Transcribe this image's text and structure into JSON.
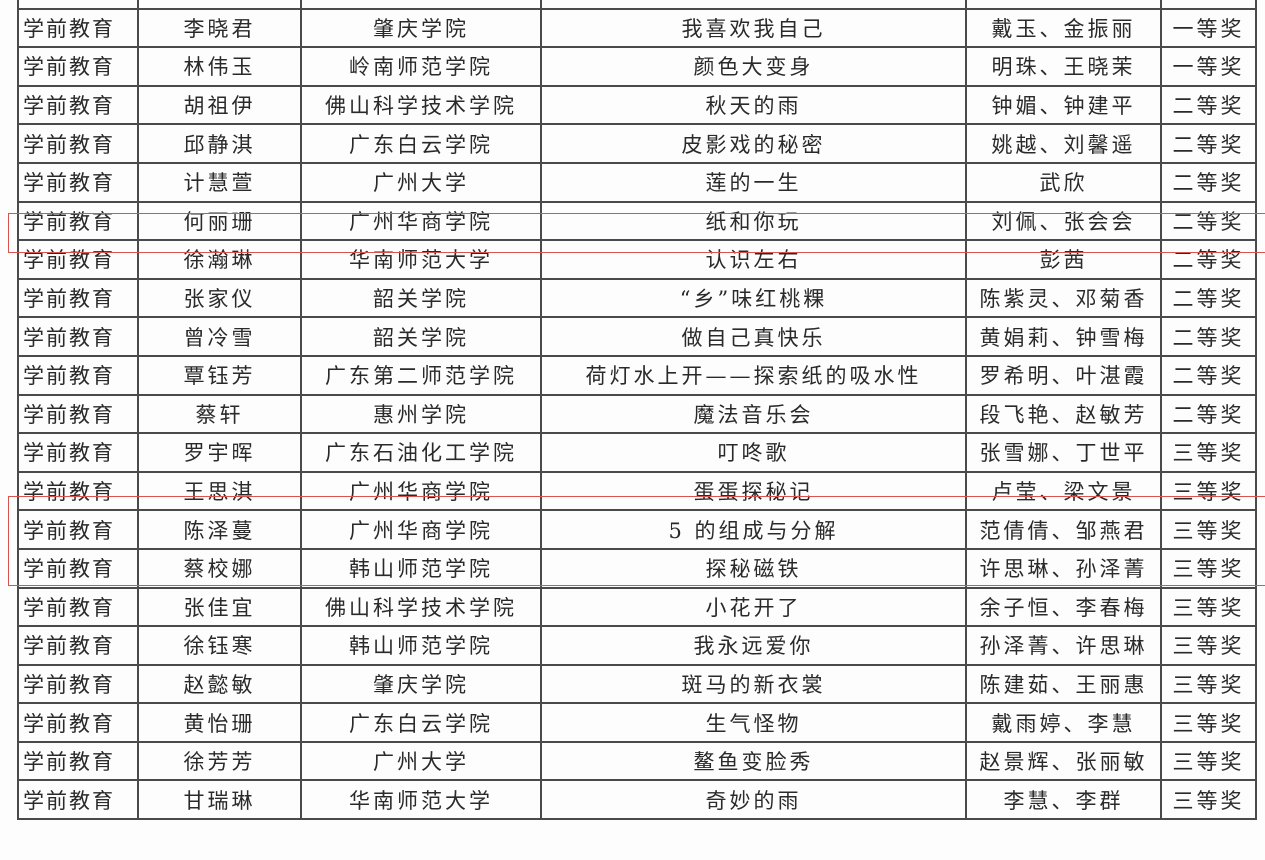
{
  "table": {
    "rows": [
      [
        "学前教育",
        "李晓君",
        "肇庆学院",
        "我喜欢我自己",
        "戴玉、金振丽",
        "一等奖"
      ],
      [
        "学前教育",
        "林伟玉",
        "岭南师范学院",
        "颜色大变身",
        "明珠、王晓茉",
        "一等奖"
      ],
      [
        "学前教育",
        "胡祖伊",
        "佛山科学技术学院",
        "秋天的雨",
        "钟媚、钟建平",
        "二等奖"
      ],
      [
        "学前教育",
        "邱静淇",
        "广东白云学院",
        "皮影戏的秘密",
        "姚越、刘馨遥",
        "二等奖"
      ],
      [
        "学前教育",
        "计慧萱",
        "广州大学",
        "莲的一生",
        "武欣",
        "二等奖"
      ],
      [
        "学前教育",
        "何丽珊",
        "广州华商学院",
        "纸和你玩",
        "刘佩、张会会",
        "二等奖"
      ],
      [
        "学前教育",
        "徐瀚琳",
        "华南师范大学",
        "认识左右",
        "彭茜",
        "二等奖"
      ],
      [
        "学前教育",
        "张家仪",
        "韶关学院",
        "“乡”味红桃粿",
        "陈紫灵、邓菊香",
        "二等奖"
      ],
      [
        "学前教育",
        "曾冷雪",
        "韶关学院",
        "做自己真快乐",
        "黄娟莉、钟雪梅",
        "二等奖"
      ],
      [
        "学前教育",
        "覃钰芳",
        "广东第二师范学院",
        "荷灯水上开——探索纸的吸水性",
        "罗希明、叶湛霞",
        "二等奖"
      ],
      [
        "学前教育",
        "蔡轩",
        "惠州学院",
        "魔法音乐会",
        "段飞艳、赵敏芳",
        "二等奖"
      ],
      [
        "学前教育",
        "罗宇晖",
        "广东石油化工学院",
        "叮咚歌",
        "张雪娜、丁世平",
        "三等奖"
      ],
      [
        "学前教育",
        "王思淇",
        "广州华商学院",
        "蛋蛋探秘记",
        "卢莹、梁文景",
        "三等奖"
      ],
      [
        "学前教育",
        "陈泽蔓",
        "广州华商学院",
        "5 的组成与分解",
        "范倩倩、邹燕君",
        "三等奖"
      ],
      [
        "学前教育",
        "蔡校娜",
        "韩山师范学院",
        "探秘磁铁",
        "许思琳、孙泽菁",
        "三等奖"
      ],
      [
        "学前教育",
        "张佳宜",
        "佛山科学技术学院",
        "小花开了",
        "余子恒、李春梅",
        "三等奖"
      ],
      [
        "学前教育",
        "徐钰寒",
        "韩山师范学院",
        "我永远爱你",
        "孙泽菁、许思琳",
        "三等奖"
      ],
      [
        "学前教育",
        "赵懿敏",
        "肇庆学院",
        "斑马的新衣裳",
        "陈建茹、王丽惠",
        "三等奖"
      ],
      [
        "学前教育",
        "黄怡珊",
        "广东白云学院",
        "生气怪物",
        "戴雨婷、李慧",
        "三等奖"
      ],
      [
        "学前教育",
        "徐芳芳",
        "广州大学",
        "鳌鱼变脸秀",
        "赵景辉、张丽敏",
        "三等奖"
      ],
      [
        "学前教育",
        "甘瑞琳",
        "华南师范大学",
        "奇妙的雨",
        "李慧、李群",
        "三等奖"
      ]
    ],
    "highlight_color": "#d9534f"
  }
}
